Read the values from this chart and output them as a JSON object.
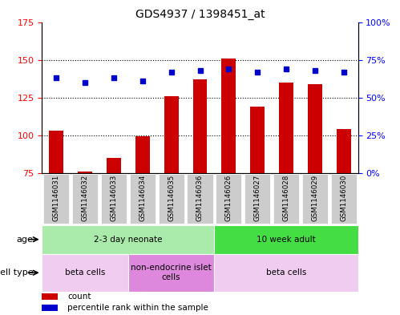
{
  "title": "GDS4937 / 1398451_at",
  "samples": [
    "GSM1146031",
    "GSM1146032",
    "GSM1146033",
    "GSM1146034",
    "GSM1146035",
    "GSM1146036",
    "GSM1146026",
    "GSM1146027",
    "GSM1146028",
    "GSM1146029",
    "GSM1146030"
  ],
  "counts": [
    103,
    76,
    85,
    99,
    126,
    137,
    151,
    119,
    135,
    134,
    104
  ],
  "percentiles": [
    63,
    60,
    63,
    61,
    67,
    68,
    69,
    67,
    69,
    68,
    67
  ],
  "ylim_left": [
    75,
    175
  ],
  "ylim_right": [
    0,
    100
  ],
  "yticks_left": [
    75,
    100,
    125,
    150,
    175
  ],
  "yticks_right": [
    0,
    25,
    50,
    75,
    100
  ],
  "ytick_labels_right": [
    "0%",
    "25%",
    "50%",
    "75%",
    "100%"
  ],
  "bar_color": "#cc0000",
  "dot_color": "#0000cc",
  "bar_bottom": 75,
  "age_groups": [
    {
      "label": "2-3 day neonate",
      "start": 0,
      "end": 6,
      "color": "#aaeaaa"
    },
    {
      "label": "10 week adult",
      "start": 6,
      "end": 11,
      "color": "#44dd44"
    }
  ],
  "cell_type_groups": [
    {
      "label": "beta cells",
      "start": 0,
      "end": 3,
      "color": "#f0ccf0"
    },
    {
      "label": "non-endocrine islet\ncells",
      "start": 3,
      "end": 6,
      "color": "#dd88dd"
    },
    {
      "label": "beta cells",
      "start": 6,
      "end": 11,
      "color": "#f0ccf0"
    }
  ],
  "age_row_label": "age",
  "cell_type_row_label": "cell type",
  "legend_items": [
    {
      "color": "#cc0000",
      "label": "count"
    },
    {
      "color": "#0000cc",
      "label": "percentile rank within the sample"
    }
  ],
  "sample_bg_color": "#cccccc",
  "grid_color": "black",
  "background_color": "#ffffff"
}
